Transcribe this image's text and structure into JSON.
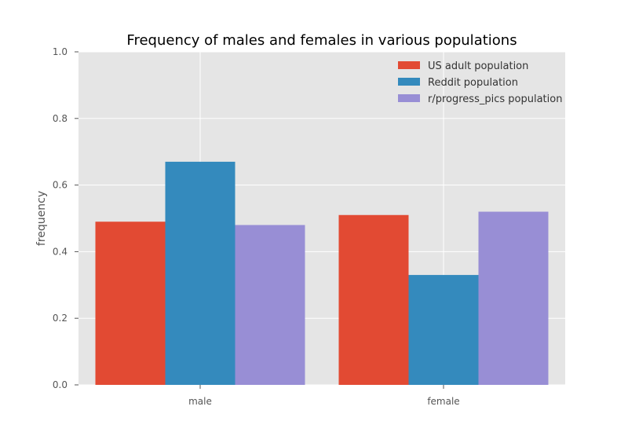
{
  "chart_data": {
    "type": "bar",
    "title": "Frequency of males and females in various populations",
    "xlabel": "",
    "ylabel": "frequency",
    "categories": [
      "male",
      "female"
    ],
    "series": [
      {
        "name": "US adult population",
        "values": [
          0.49,
          0.51
        ],
        "color": "#e24a33"
      },
      {
        "name": "Reddit population",
        "values": [
          0.67,
          0.33
        ],
        "color": "#348abd"
      },
      {
        "name": "r/progress_pics population",
        "values": [
          0.48,
          0.52
        ],
        "color": "#988ed5"
      }
    ],
    "ylim": [
      0,
      1.0
    ],
    "yticks": [
      "0.0",
      "0.2",
      "0.4",
      "0.6",
      "0.8",
      "1.0"
    ],
    "grid": true,
    "legend_position": "top-right",
    "background_color": "#e5e5e5",
    "grid_color": "#ffffff"
  }
}
